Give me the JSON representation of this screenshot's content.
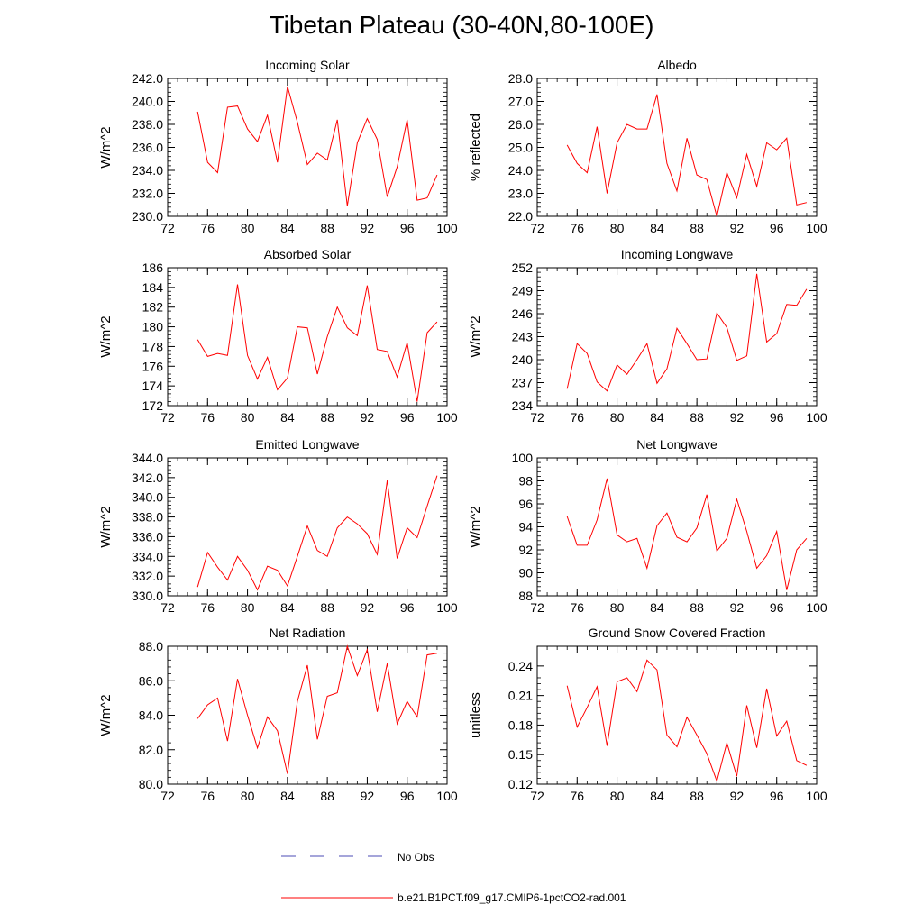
{
  "title": "Tibetan Plateau (30-40N,80-100E)",
  "colors": {
    "model": "#ff0000",
    "obs": "#4b4bb4",
    "axis": "#000000"
  },
  "legend": {
    "obs_label": "No Obs",
    "model_label": "b.e21.B1PCT.f09_g17.CMIP6-1pctCO2-rad.001"
  },
  "chart_data": [
    {
      "type": "line",
      "title": "Incoming Solar",
      "ylabel": "W/m^2",
      "xlim": [
        72,
        100
      ],
      "ylim": [
        230,
        242
      ],
      "x_ticks": [
        72,
        76,
        80,
        84,
        88,
        92,
        96,
        100
      ],
      "y_ticks": [
        230,
        232,
        234,
        236,
        238,
        240,
        242
      ],
      "y_tick_labels": [
        "230.0",
        "232.0",
        "234.0",
        "236.0",
        "238.0",
        "240.0",
        "242.0"
      ],
      "x": [
        75,
        76,
        77,
        78,
        79,
        80,
        81,
        82,
        83,
        84,
        85,
        86,
        87,
        88,
        89,
        90,
        91,
        92,
        93,
        94,
        95,
        96,
        97,
        98,
        99
      ],
      "series": [
        {
          "name": "b.e21.B1PCT.f09_g17.CMIP6-1pctCO2-rad.001",
          "values": [
            239.1,
            234.7,
            233.8,
            239.5,
            239.6,
            237.6,
            236.5,
            238.8,
            234.7,
            241.3,
            238.2,
            234.5,
            235.5,
            234.9,
            238.4,
            230.9,
            236.4,
            238.5,
            236.7,
            231.7,
            234.3,
            238.4,
            231.4,
            231.6,
            233.6
          ]
        }
      ]
    },
    {
      "type": "line",
      "title": "Albedo",
      "ylabel": "% reflected",
      "xlim": [
        72,
        100
      ],
      "ylim": [
        22,
        28
      ],
      "x_ticks": [
        72,
        76,
        80,
        84,
        88,
        92,
        96,
        100
      ],
      "y_ticks": [
        22,
        23,
        24,
        25,
        26,
        27,
        28
      ],
      "y_tick_labels": [
        "22.0",
        "23.0",
        "24.0",
        "25.0",
        "26.0",
        "27.0",
        "28.0"
      ],
      "x": [
        75,
        76,
        77,
        78,
        79,
        80,
        81,
        82,
        83,
        84,
        85,
        86,
        87,
        88,
        89,
        90,
        91,
        92,
        93,
        94,
        95,
        96,
        97,
        98,
        99
      ],
      "series": [
        {
          "name": "b.e21.B1PCT.f09_g17.CMIP6-1pctCO2-rad.001",
          "values": [
            25.1,
            24.3,
            23.9,
            25.9,
            23.0,
            25.2,
            26.0,
            25.8,
            25.8,
            27.3,
            24.3,
            23.1,
            25.4,
            23.8,
            23.6,
            22.0,
            23.9,
            22.8,
            24.7,
            23.3,
            25.2,
            24.9,
            25.4,
            22.5,
            22.6
          ]
        }
      ]
    },
    {
      "type": "line",
      "title": "Absorbed Solar",
      "ylabel": "W/m^2",
      "xlim": [
        72,
        100
      ],
      "ylim": [
        172,
        186
      ],
      "x_ticks": [
        72,
        76,
        80,
        84,
        88,
        92,
        96,
        100
      ],
      "y_ticks": [
        172,
        174,
        176,
        178,
        180,
        182,
        184,
        186
      ],
      "y_tick_labels": [
        "172",
        "174",
        "176",
        "178",
        "180",
        "182",
        "184",
        "186"
      ],
      "x": [
        75,
        76,
        77,
        78,
        79,
        80,
        81,
        82,
        83,
        84,
        85,
        86,
        87,
        88,
        89,
        90,
        91,
        92,
        93,
        94,
        95,
        96,
        97,
        98,
        99
      ],
      "series": [
        {
          "name": "b.e21.B1PCT.f09_g17.CMIP6-1pctCO2-rad.001",
          "values": [
            178.7,
            177.0,
            177.3,
            177.1,
            184.3,
            177.1,
            174.7,
            176.9,
            173.6,
            174.8,
            180.0,
            179.9,
            175.2,
            179.0,
            182.0,
            179.9,
            179.1,
            184.2,
            177.7,
            177.5,
            174.9,
            178.4,
            172.4,
            179.4,
            180.5
          ]
        }
      ]
    },
    {
      "type": "line",
      "title": "Incoming Longwave",
      "ylabel": "W/m^2",
      "xlim": [
        72,
        100
      ],
      "ylim": [
        234,
        252
      ],
      "x_ticks": [
        72,
        76,
        80,
        84,
        88,
        92,
        96,
        100
      ],
      "y_ticks": [
        234,
        237,
        240,
        243,
        246,
        249,
        252
      ],
      "y_tick_labels": [
        "234",
        "237",
        "240",
        "243",
        "246",
        "249",
        "252"
      ],
      "x": [
        75,
        76,
        77,
        78,
        79,
        80,
        81,
        82,
        83,
        84,
        85,
        86,
        87,
        88,
        89,
        90,
        91,
        92,
        93,
        94,
        95,
        96,
        97,
        98,
        99
      ],
      "series": [
        {
          "name": "b.e21.B1PCT.f09_g17.CMIP6-1pctCO2-rad.001",
          "values": [
            236.2,
            242.1,
            240.8,
            237.1,
            235.9,
            239.3,
            238.1,
            240.0,
            242.1,
            236.9,
            238.8,
            244.1,
            242.1,
            240.0,
            240.1,
            246.1,
            244.2,
            239.9,
            240.5,
            251.2,
            242.3,
            243.4,
            247.2,
            247.1,
            249.2
          ]
        }
      ]
    },
    {
      "type": "line",
      "title": "Emitted Longwave",
      "ylabel": "W/m^2",
      "xlim": [
        72,
        100
      ],
      "ylim": [
        330,
        344
      ],
      "x_ticks": [
        72,
        76,
        80,
        84,
        88,
        92,
        96,
        100
      ],
      "y_ticks": [
        330,
        332,
        334,
        336,
        338,
        340,
        342,
        344
      ],
      "y_tick_labels": [
        "330.0",
        "332.0",
        "334.0",
        "336.0",
        "338.0",
        "340.0",
        "342.0",
        "344.0"
      ],
      "x": [
        75,
        76,
        77,
        78,
        79,
        80,
        81,
        82,
        83,
        84,
        85,
        86,
        87,
        88,
        89,
        90,
        91,
        92,
        93,
        94,
        95,
        96,
        97,
        98,
        99
      ],
      "series": [
        {
          "name": "b.e21.B1PCT.f09_g17.CMIP6-1pctCO2-rad.001",
          "values": [
            330.9,
            334.4,
            332.9,
            331.6,
            334.0,
            332.6,
            330.6,
            333.0,
            332.6,
            331.0,
            334.0,
            337.1,
            334.6,
            334.0,
            336.9,
            338.0,
            337.3,
            336.3,
            334.2,
            341.7,
            333.8,
            336.9,
            335.9,
            339.1,
            342.2
          ]
        }
      ]
    },
    {
      "type": "line",
      "title": "Net Longwave",
      "ylabel": "W/m^2",
      "xlim": [
        72,
        100
      ],
      "ylim": [
        88,
        100
      ],
      "x_ticks": [
        72,
        76,
        80,
        84,
        88,
        92,
        96,
        100
      ],
      "y_ticks": [
        88,
        90,
        92,
        94,
        96,
        98,
        100
      ],
      "y_tick_labels": [
        "88",
        "90",
        "92",
        "94",
        "96",
        "98",
        "100"
      ],
      "x": [
        75,
        76,
        77,
        78,
        79,
        80,
        81,
        82,
        83,
        84,
        85,
        86,
        87,
        88,
        89,
        90,
        91,
        92,
        93,
        94,
        95,
        96,
        97,
        98,
        99
      ],
      "series": [
        {
          "name": "b.e21.B1PCT.f09_g17.CMIP6-1pctCO2-rad.001",
          "values": [
            94.9,
            92.4,
            92.4,
            94.6,
            98.2,
            93.3,
            92.7,
            93.0,
            90.4,
            94.1,
            95.2,
            93.1,
            92.7,
            93.9,
            96.8,
            91.9,
            93.0,
            96.4,
            93.6,
            90.4,
            91.5,
            93.6,
            88.5,
            92.0,
            93.0
          ]
        }
      ]
    },
    {
      "type": "line",
      "title": "Net Radiation",
      "ylabel": "W/m^2",
      "xlim": [
        72,
        100
      ],
      "ylim": [
        80,
        88
      ],
      "x_ticks": [
        72,
        76,
        80,
        84,
        88,
        92,
        96,
        100
      ],
      "y_ticks": [
        80,
        82,
        84,
        86,
        88
      ],
      "y_tick_labels": [
        "80.0",
        "82.0",
        "84.0",
        "86.0",
        "88.0"
      ],
      "x": [
        75,
        76,
        77,
        78,
        79,
        80,
        81,
        82,
        83,
        84,
        85,
        86,
        87,
        88,
        89,
        90,
        91,
        92,
        93,
        94,
        95,
        96,
        97,
        98,
        99
      ],
      "series": [
        {
          "name": "b.e21.B1PCT.f09_g17.CMIP6-1pctCO2-rad.001",
          "values": [
            83.8,
            84.6,
            85.0,
            82.5,
            86.1,
            84.0,
            82.1,
            83.9,
            83.1,
            80.6,
            84.8,
            86.9,
            82.6,
            85.1,
            85.3,
            88.0,
            86.3,
            87.8,
            84.2,
            87.0,
            83.5,
            84.8,
            83.9,
            87.5,
            87.6
          ]
        }
      ]
    },
    {
      "type": "line",
      "title": "Ground Snow Covered Fraction",
      "ylabel": "unitless",
      "xlim": [
        72,
        100
      ],
      "ylim": [
        0.12,
        0.26
      ],
      "x_ticks": [
        72,
        76,
        80,
        84,
        88,
        92,
        96,
        100
      ],
      "y_ticks": [
        0.12,
        0.15,
        0.18,
        0.21,
        0.24
      ],
      "y_tick_labels": [
        "0.12",
        "0.15",
        "0.18",
        "0.21",
        "0.24"
      ],
      "x": [
        75,
        76,
        77,
        78,
        79,
        80,
        81,
        82,
        83,
        84,
        85,
        86,
        87,
        88,
        89,
        90,
        91,
        92,
        93,
        94,
        95,
        96,
        97,
        98,
        99
      ],
      "series": [
        {
          "name": "b.e21.B1PCT.f09_g17.CMIP6-1pctCO2-rad.001",
          "values": [
            0.22,
            0.178,
            0.198,
            0.219,
            0.159,
            0.224,
            0.228,
            0.214,
            0.246,
            0.236,
            0.17,
            0.158,
            0.188,
            0.17,
            0.151,
            0.123,
            0.162,
            0.128,
            0.2,
            0.157,
            0.217,
            0.169,
            0.184,
            0.144,
            0.139
          ]
        }
      ]
    }
  ]
}
